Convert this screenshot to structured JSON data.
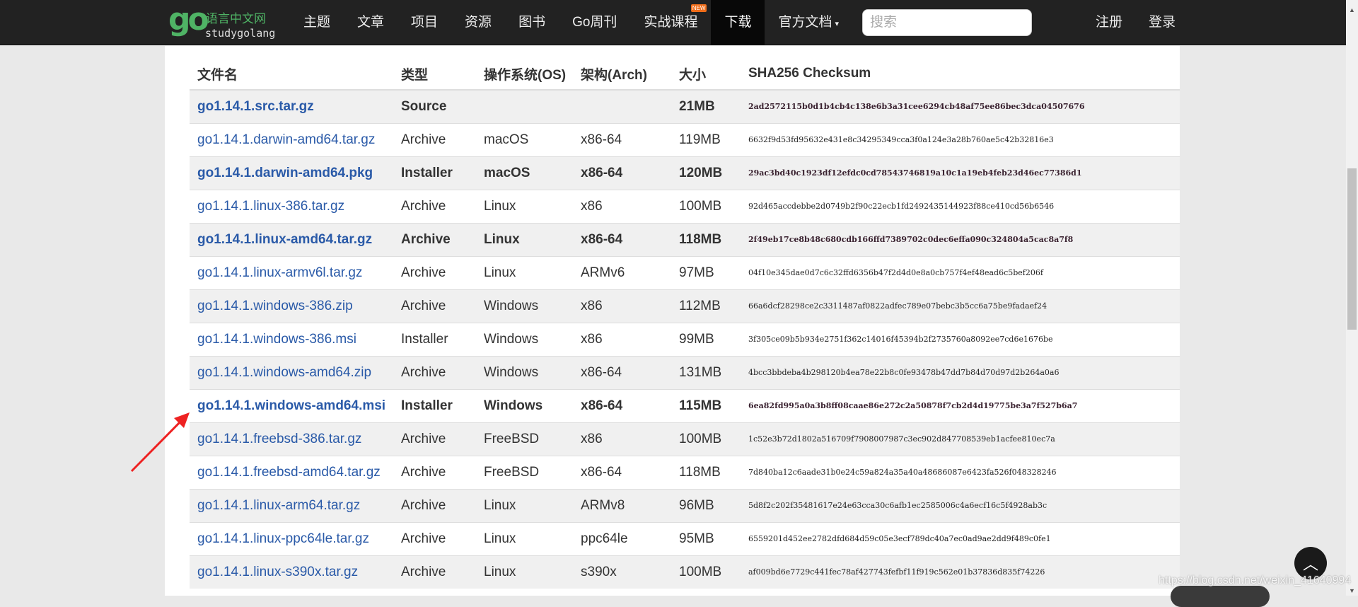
{
  "nav": {
    "logo_cn": "语言中文网",
    "logo_en": "studygolang",
    "logo_mark": "go",
    "items": [
      {
        "label": "主题"
      },
      {
        "label": "文章"
      },
      {
        "label": "项目"
      },
      {
        "label": "资源"
      },
      {
        "label": "图书"
      },
      {
        "label": "Go周刊"
      },
      {
        "label": "实战课程",
        "badge": "NEW"
      },
      {
        "label": "下载",
        "active": true
      },
      {
        "label": "官方文档"
      }
    ],
    "search_placeholder": "搜索",
    "register": "注册",
    "login": "登录"
  },
  "table": {
    "headers": [
      "文件名",
      "类型",
      "操作系统(OS)",
      "架构(Arch)",
      "大小",
      "SHA256 Checksum"
    ],
    "rows": [
      {
        "name": "go1.14.1.src.tar.gz",
        "type": "Source",
        "os": "",
        "arch": "",
        "size": "21MB",
        "sha": "2ad2572115b0d1b4cb4c138e6b3a31cee6294cb48af75ee86bec3dca04507676",
        "bold": true
      },
      {
        "name": "go1.14.1.darwin-amd64.tar.gz",
        "type": "Archive",
        "os": "macOS",
        "arch": "x86-64",
        "size": "119MB",
        "sha": "6632f9d53fd95632e431e8c34295349cca3f0a124e3a28b760ae5c42b32816e3"
      },
      {
        "name": "go1.14.1.darwin-amd64.pkg",
        "type": "Installer",
        "os": "macOS",
        "arch": "x86-64",
        "size": "120MB",
        "sha": "29ac3bd40c1923df12efdc0cd78543746819a10c1a19eb4feb23d46ec77386d1",
        "bold": true
      },
      {
        "name": "go1.14.1.linux-386.tar.gz",
        "type": "Archive",
        "os": "Linux",
        "arch": "x86",
        "size": "100MB",
        "sha": "92d465accdebbe2d0749b2f90c22ecb1fd2492435144923f88ce410cd56b6546"
      },
      {
        "name": "go1.14.1.linux-amd64.tar.gz",
        "type": "Archive",
        "os": "Linux",
        "arch": "x86-64",
        "size": "118MB",
        "sha": "2f49eb17ce8b48c680cdb166ffd7389702c0dec6effa090c324804a5cac8a7f8",
        "bold": true
      },
      {
        "name": "go1.14.1.linux-armv6l.tar.gz",
        "type": "Archive",
        "os": "Linux",
        "arch": "ARMv6",
        "size": "97MB",
        "sha": "04f10e345dae0d7c6c32ffd6356b47f2d4d0e8a0cb757f4ef48ead6c5bef206f"
      },
      {
        "name": "go1.14.1.windows-386.zip",
        "type": "Archive",
        "os": "Windows",
        "arch": "x86",
        "size": "112MB",
        "sha": "66a6dcf28298ce2c3311487af0822adfec789e07bebc3b5cc6a75be9fadaef24"
      },
      {
        "name": "go1.14.1.windows-386.msi",
        "type": "Installer",
        "os": "Windows",
        "arch": "x86",
        "size": "99MB",
        "sha": "3f305ce09b5b934e2751f362c14016f45394b2f2735760a8092ee7cd6e1676be"
      },
      {
        "name": "go1.14.1.windows-amd64.zip",
        "type": "Archive",
        "os": "Windows",
        "arch": "x86-64",
        "size": "131MB",
        "sha": "4bcc3bbdeba4b298120b4ea78e22b8c0fe93478b47dd7b84d70d97d2b264a0a6"
      },
      {
        "name": "go1.14.1.windows-amd64.msi",
        "type": "Installer",
        "os": "Windows",
        "arch": "x86-64",
        "size": "115MB",
        "sha": "6ea82fd995a0a3b8ff08caae86e272c2a50878f7cb2d4d19775be3a7f527b6a7",
        "bold": true
      },
      {
        "name": "go1.14.1.freebsd-386.tar.gz",
        "type": "Archive",
        "os": "FreeBSD",
        "arch": "x86",
        "size": "100MB",
        "sha": "1c52e3b72d1802a516709f7908007987c3ec902d847708539eb1acfee810ec7a"
      },
      {
        "name": "go1.14.1.freebsd-amd64.tar.gz",
        "type": "Archive",
        "os": "FreeBSD",
        "arch": "x86-64",
        "size": "118MB",
        "sha": "7d840ba12c6aade31b0e24c59a824a35a40a48686087e6423fa526f048328246"
      },
      {
        "name": "go1.14.1.linux-arm64.tar.gz",
        "type": "Archive",
        "os": "Linux",
        "arch": "ARMv8",
        "size": "96MB",
        "sha": "5d8f2c202f35481617e24e63cca30c6afb1ec2585006c4a6ecf16c5f4928ab3c"
      },
      {
        "name": "go1.14.1.linux-ppc64le.tar.gz",
        "type": "Archive",
        "os": "Linux",
        "arch": "ppc64le",
        "size": "95MB",
        "sha": "6559201d452ee2782dfd684d59c05e3ecf789dc40a7ec0ad9ae2dd9f489c0fe1"
      },
      {
        "name": "go1.14.1.linux-s390x.tar.gz",
        "type": "Archive",
        "os": "Linux",
        "arch": "s390x",
        "size": "100MB",
        "sha": "af009bd6e7729c441fec78af427743fefbf11f919c562e01b37836d835f74226"
      }
    ]
  },
  "watermark": "https://blog.csdn.net/weixin_41640994",
  "colors": {
    "nav_bg": "#222222",
    "link": "#2a5aa8",
    "logo_green": "#4fb365",
    "annotation_arrow": "#ee2222"
  }
}
